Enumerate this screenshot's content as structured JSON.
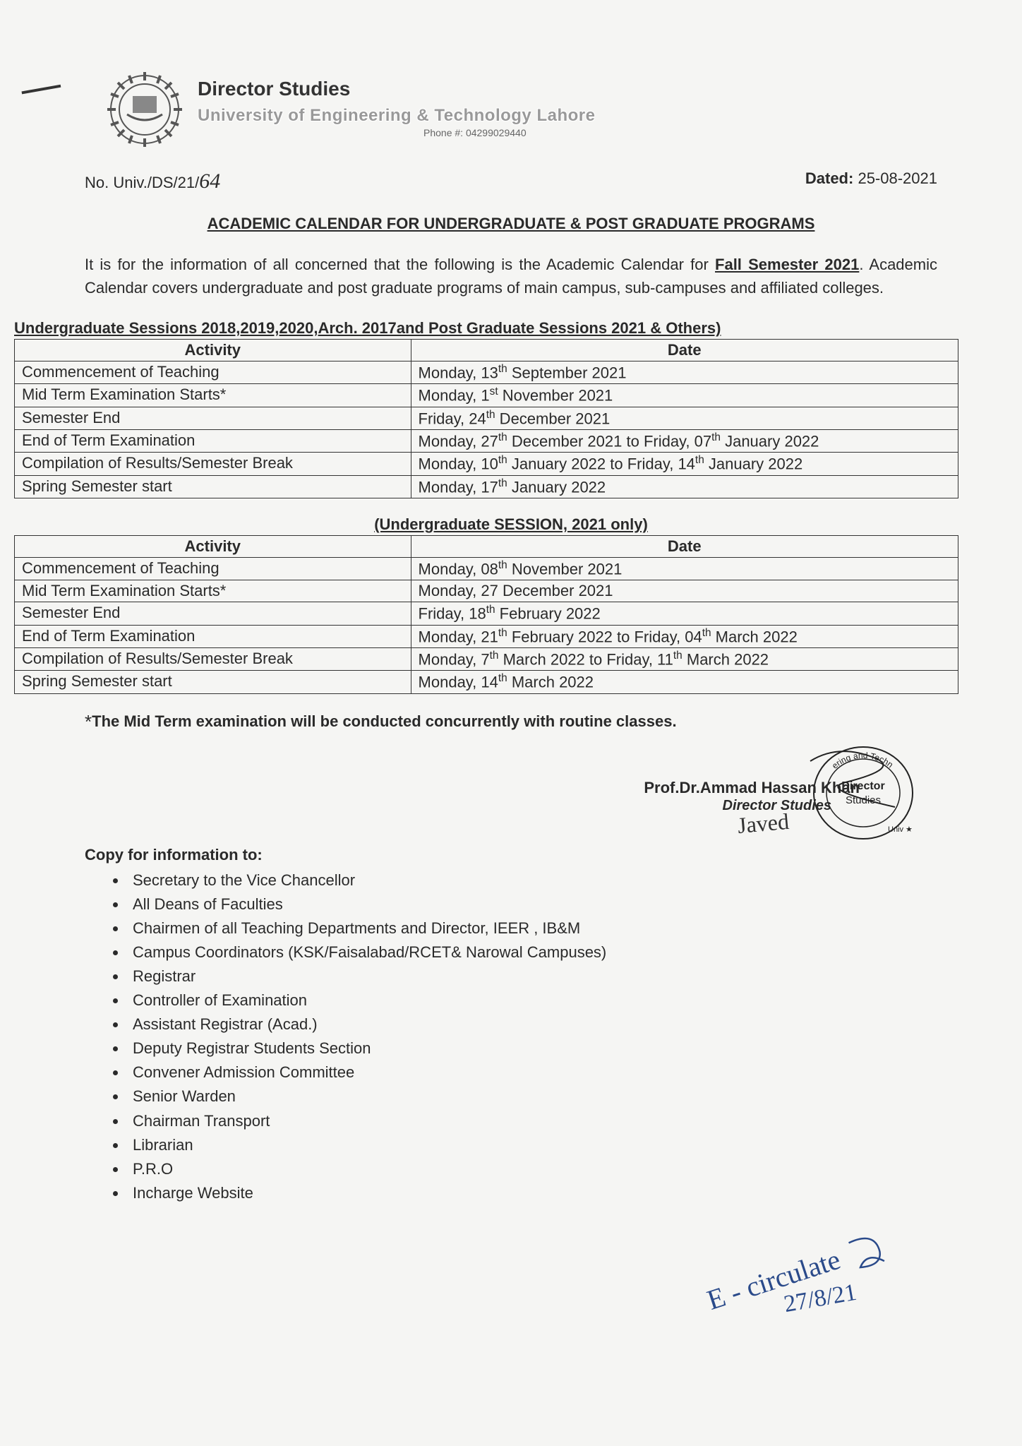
{
  "colors": {
    "text": "#2a2a2a",
    "bg": "#f5f5f3",
    "border": "#333333",
    "univ_outline": "#999999",
    "ink_blue": "#2a4a8a"
  },
  "header": {
    "dept_title": "Director Studies",
    "university": "University of Engineering & Technology Lahore",
    "phone_label": "Phone #:",
    "phone": "04299029440"
  },
  "meta": {
    "ref_prefix": "No. Univ./DS/21/",
    "ref_handwritten": "64",
    "dated_label": "Dated:",
    "dated_value": "25-08-2021"
  },
  "title": "ACADEMIC CALENDAR FOR UNDERGRADUATE & POST GRADUATE PROGRAMS",
  "intro": {
    "before": "It is for the information of all concerned that the following is the Academic Calendar for ",
    "fall": "Fall Semester 2021",
    "after": ". Academic Calendar covers undergraduate and post graduate programs of main campus, sub-campuses and affiliated colleges."
  },
  "table1": {
    "heading": "Undergraduate Sessions 2018,2019,2020,Arch. 2017and Post Graduate Sessions 2021 & Others)",
    "columns": [
      "Activity",
      "Date"
    ],
    "rows": [
      {
        "activity": "Commencement of Teaching",
        "date_parts": [
          "Monday, 13",
          "th",
          " September 2021"
        ]
      },
      {
        "activity": "Mid Term Examination Starts*",
        "date_parts": [
          "Monday, 1",
          "st",
          " November 2021"
        ]
      },
      {
        "activity": "Semester End",
        "date_parts": [
          "Friday, 24",
          "th",
          " December 2021"
        ]
      },
      {
        "activity": "End of Term Examination",
        "date_parts": [
          "Monday, 27",
          "th",
          " December 2021 to Friday, 07",
          "th",
          " January 2022"
        ]
      },
      {
        "activity": "Compilation of Results/Semester Break",
        "date_parts": [
          "Monday, 10",
          "th",
          " January 2022 to Friday, 14",
          "th",
          " January 2022"
        ]
      },
      {
        "activity": "Spring Semester start",
        "date_parts": [
          "Monday, 17",
          "th",
          " January 2022"
        ]
      }
    ]
  },
  "table2": {
    "heading": "(Undergraduate SESSION, 2021 only)",
    "columns": [
      "Activity",
      "Date"
    ],
    "rows": [
      {
        "activity": "Commencement of Teaching",
        "date_parts": [
          "Monday, 08",
          "th",
          " November 2021"
        ]
      },
      {
        "activity": "Mid Term Examination Starts*",
        "date_parts": [
          "Monday, 27 December 2021"
        ]
      },
      {
        "activity": "Semester End",
        "date_parts": [
          "Friday, 18",
          "th",
          " February 2022"
        ]
      },
      {
        "activity": "End of Term Examination",
        "date_parts": [
          "Monday, 21",
          "th",
          " February 2022 to Friday, 04",
          "th",
          " March 2022"
        ]
      },
      {
        "activity": "Compilation of Results/Semester Break",
        "date_parts": [
          "Monday, 7",
          "th",
          " March 2022 to Friday, 11",
          "th",
          " March 2022"
        ]
      },
      {
        "activity": "Spring Semester start",
        "date_parts": [
          "Monday, 14",
          "th",
          " March 2022"
        ]
      }
    ]
  },
  "footnote": {
    "star": "*",
    "text": "The Mid Term examination will be conducted concurrently with routine classes."
  },
  "signature": {
    "name": "Prof.Dr.Ammad Hassan Khan",
    "role": "Director Studies",
    "stamp_top": "Director",
    "stamp_bottom": "Studies",
    "squiggle": "Javed"
  },
  "copy": {
    "heading": "Copy for information to:",
    "items": [
      "Secretary to the Vice Chancellor",
      "All Deans of Faculties",
      "Chairmen of all Teaching Departments and Director, IEER , IB&M",
      "Campus Coordinators (KSK/Faisalabad/RCET& Narowal Campuses)",
      "Registrar",
      "Controller of Examination",
      "Assistant Registrar (Acad.)",
      "Deputy Registrar Students Section",
      "Convener Admission Committee",
      "Senior Warden",
      "Chairman Transport",
      "Librarian",
      "P.R.O",
      "Incharge Website"
    ]
  },
  "handnote": {
    "line1": "E - circulate",
    "line2": "27/8/21"
  }
}
